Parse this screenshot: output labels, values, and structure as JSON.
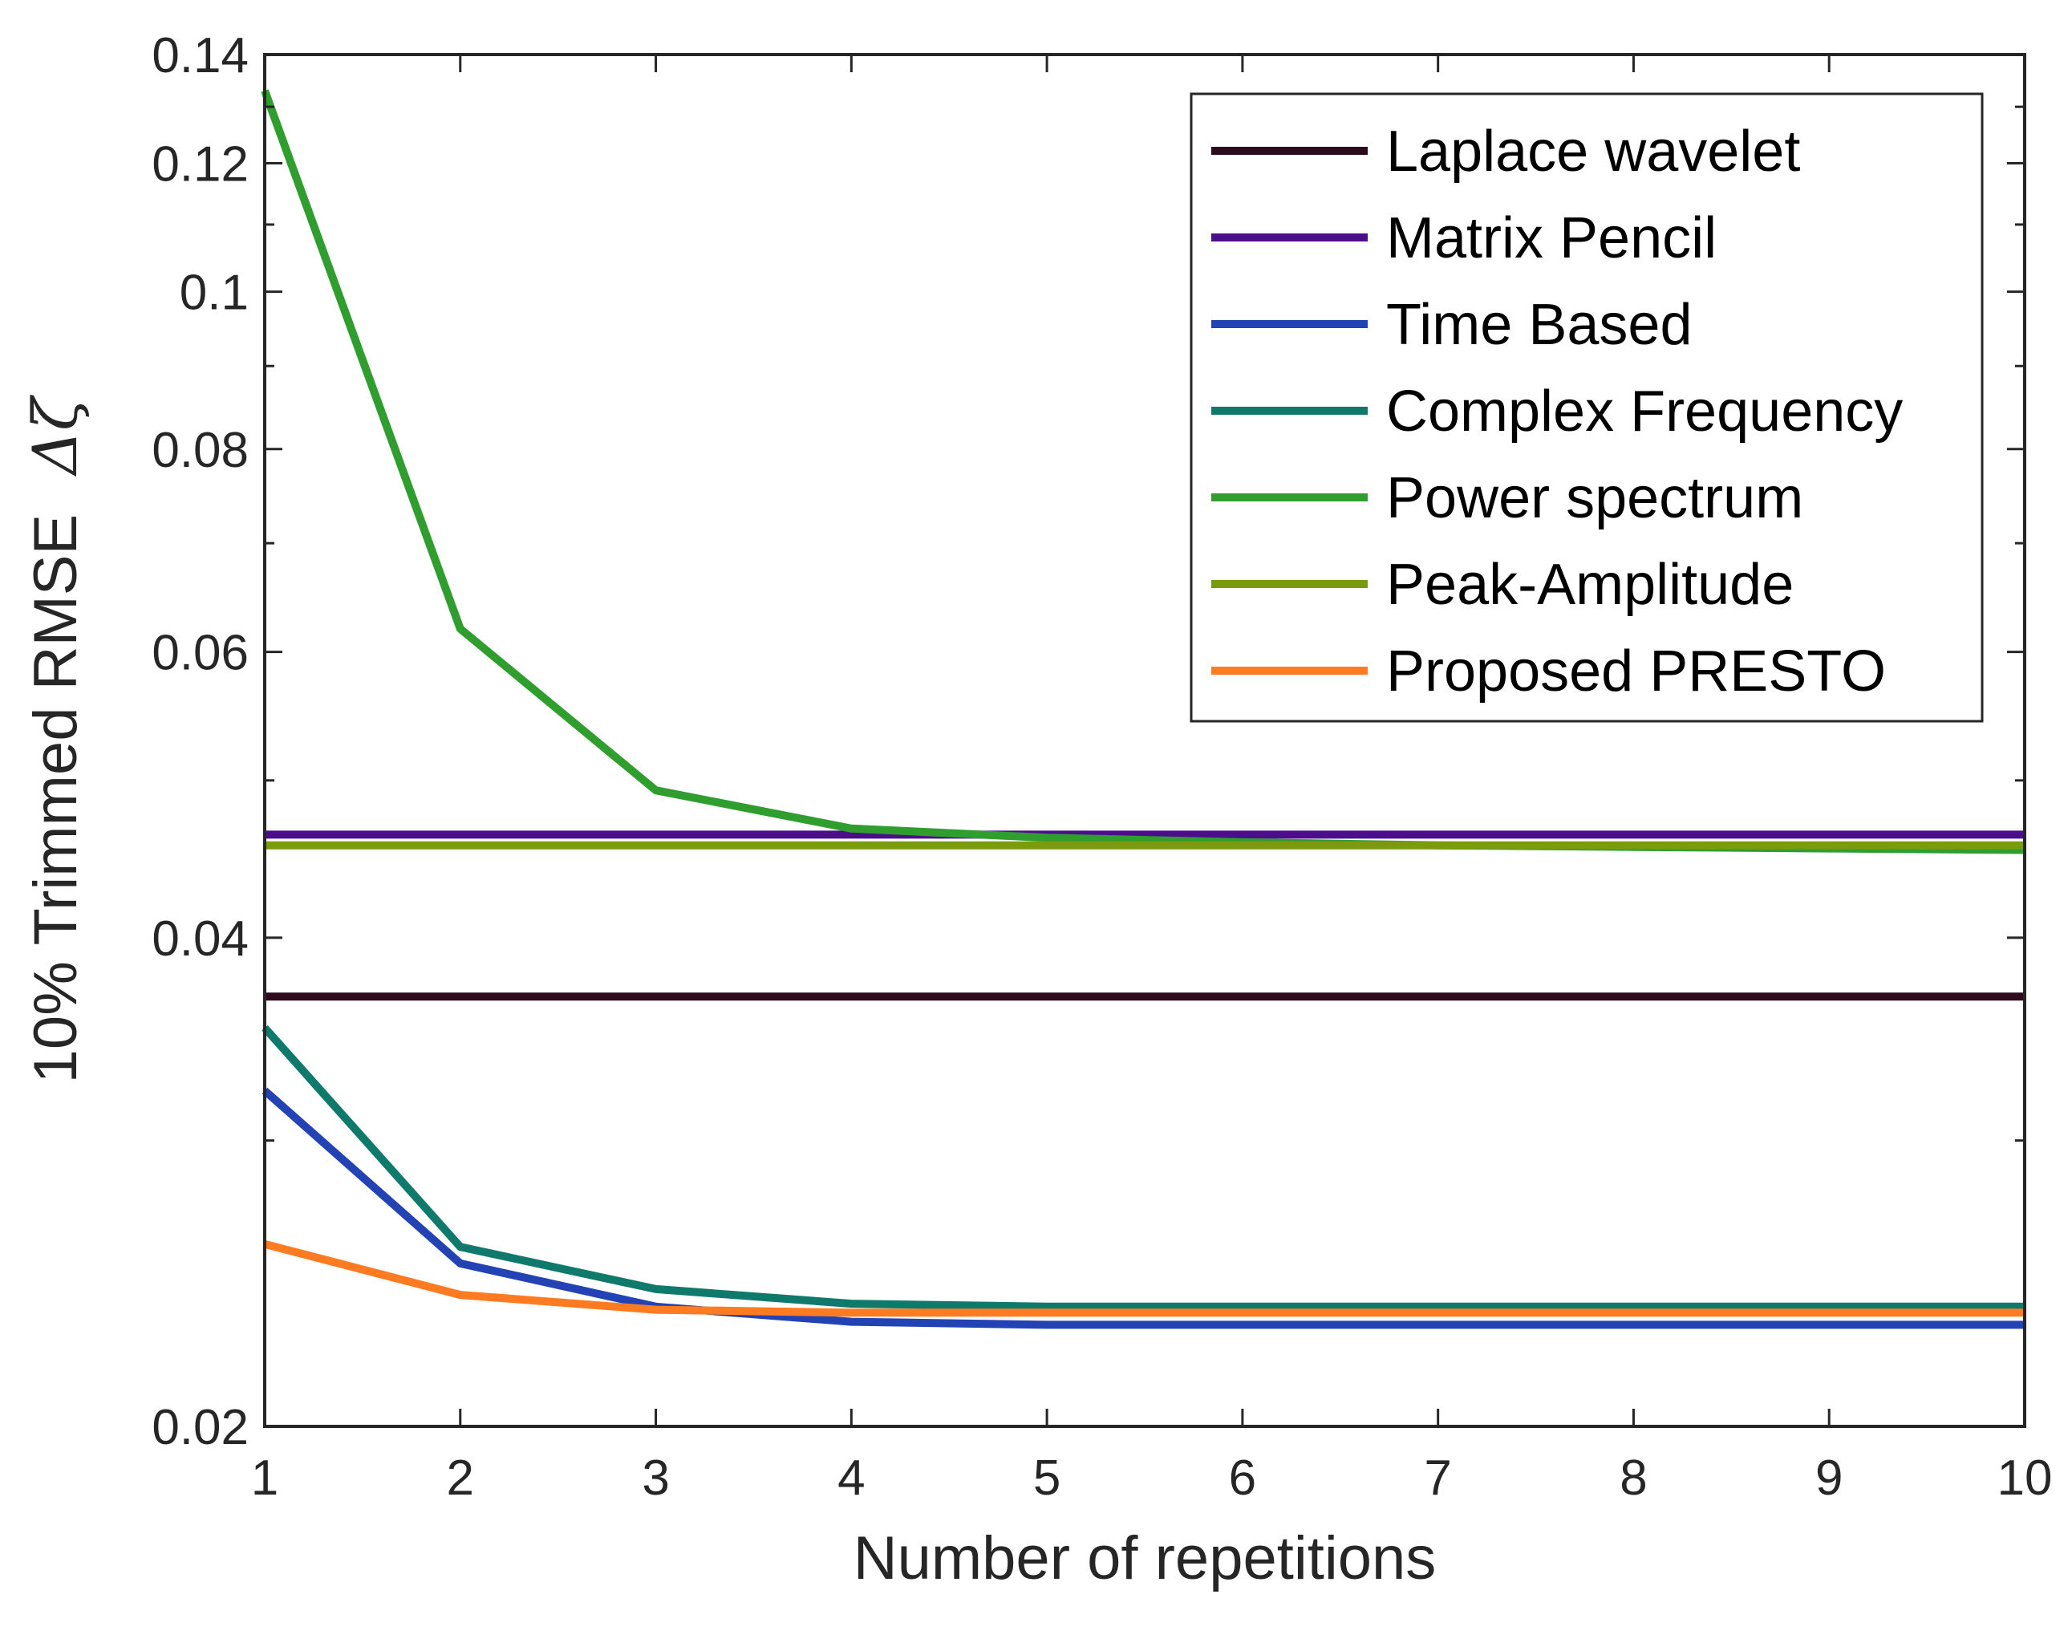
{
  "chart_data": {
    "type": "line",
    "title": "",
    "xlabel": "Number of repetitions",
    "ylabel": "10% Trimmed RMSE",
    "ylabel_symbol": "Δζ",
    "y_scale": "log",
    "xlim": [
      1,
      10
    ],
    "ylim": [
      0.02,
      0.14
    ],
    "x": [
      1,
      2,
      3,
      4,
      5,
      6,
      7,
      8,
      9,
      10
    ],
    "x_ticks": [
      1,
      2,
      3,
      4,
      5,
      6,
      7,
      8,
      9,
      10
    ],
    "x_tick_labels": [
      "1",
      "2",
      "3",
      "4",
      "5",
      "6",
      "7",
      "8",
      "9",
      "10"
    ],
    "y_ticks": [
      0.02,
      0.04,
      0.06,
      0.08,
      0.1,
      0.12,
      0.14
    ],
    "y_tick_labels": [
      "0.02",
      "0.04",
      "0.06",
      "0.08",
      "0.1",
      "0.12",
      "0.14"
    ],
    "y_minor_ticks": [
      0.03,
      0.05,
      0.07,
      0.09,
      0.11,
      0.13
    ],
    "grid": false,
    "legend_position": "top-right",
    "series": [
      {
        "name": "Laplace wavelet",
        "color": "#2d0a1c",
        "values": [
          0.0368,
          0.0368,
          0.0368,
          0.0368,
          0.0368,
          0.0368,
          0.0368,
          0.0368,
          0.0368,
          0.0368
        ]
      },
      {
        "name": "Matrix Pencil",
        "color": "#4b0e8a",
        "values": [
          0.0463,
          0.0463,
          0.0463,
          0.0463,
          0.0463,
          0.0463,
          0.0463,
          0.0463,
          0.0463,
          0.0463
        ]
      },
      {
        "name": "Time Based",
        "color": "#2343b5",
        "values": [
          0.0322,
          0.0252,
          0.0237,
          0.0232,
          0.0231,
          0.0231,
          0.0231,
          0.0231,
          0.0231,
          0.0231
        ]
      },
      {
        "name": "Complex Frequency",
        "color": "#0f7a6c",
        "values": [
          0.0352,
          0.0258,
          0.0243,
          0.0238,
          0.0237,
          0.0237,
          0.0237,
          0.0237,
          0.0237,
          0.0237
        ]
      },
      {
        "name": "Power spectrum",
        "color": "#2f9e2f",
        "values": [
          0.133,
          0.062,
          0.0493,
          0.0467,
          0.0461,
          0.0458,
          0.0456,
          0.0455,
          0.0454,
          0.0453
        ]
      },
      {
        "name": "Peak-Amplitude",
        "color": "#7a9b0e",
        "values": [
          0.0456,
          0.0456,
          0.0456,
          0.0456,
          0.0456,
          0.0456,
          0.0456,
          0.0456,
          0.0456,
          0.0456
        ]
      },
      {
        "name": "Proposed PRESTO",
        "color": "#ff7b21",
        "values": [
          0.0259,
          0.0241,
          0.0236,
          0.0235,
          0.0235,
          0.0235,
          0.0235,
          0.0235,
          0.0235,
          0.0235
        ]
      }
    ]
  }
}
